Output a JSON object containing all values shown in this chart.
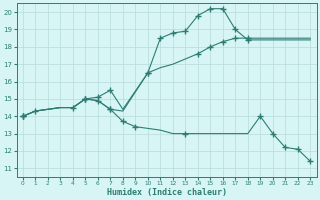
{
  "xlabel": "Humidex (Indice chaleur)",
  "bg_color": "#d8f5f5",
  "line_color": "#2d7d74",
  "grid_color": "#b8dada",
  "xlim": [
    -0.5,
    23.5
  ],
  "ylim": [
    10.5,
    20.5
  ],
  "xticks": [
    0,
    1,
    2,
    3,
    4,
    5,
    6,
    7,
    8,
    9,
    10,
    11,
    12,
    13,
    14,
    15,
    16,
    17,
    18,
    19,
    20,
    21,
    22,
    23
  ],
  "yticks": [
    11,
    12,
    13,
    14,
    15,
    16,
    17,
    18,
    19,
    20
  ],
  "line1_x": [
    0,
    1,
    2,
    3,
    4,
    5,
    6,
    7,
    8,
    10,
    11,
    12,
    13,
    14,
    15,
    16,
    17,
    18,
    19,
    20,
    21,
    22,
    23
  ],
  "line1_y": [
    14,
    14.3,
    14.4,
    14.5,
    14.5,
    15.0,
    14.9,
    14.4,
    14.3,
    16.5,
    18.5,
    18.8,
    18.9,
    19.8,
    20.2,
    20.2,
    19.0,
    18.4,
    18.4,
    18.4,
    18.4,
    18.4,
    18.4
  ],
  "line2_x": [
    0,
    1,
    2,
    3,
    4,
    5,
    6,
    7,
    8,
    10,
    11,
    12,
    13,
    14,
    15,
    16,
    17,
    18,
    19,
    20,
    21,
    22,
    23
  ],
  "line2_y": [
    14,
    14.3,
    14.4,
    14.5,
    14.5,
    15.0,
    15.1,
    15.5,
    14.4,
    16.5,
    16.8,
    17.0,
    17.3,
    17.6,
    18.0,
    18.3,
    18.5,
    18.5,
    18.5,
    18.5,
    18.5,
    18.5,
    18.5
  ],
  "line3_x": [
    0,
    1,
    2,
    3,
    4,
    5,
    6,
    7,
    8,
    9,
    10,
    11,
    12,
    13,
    14,
    15,
    16,
    17,
    18,
    19,
    20,
    21,
    22,
    23
  ],
  "line3_y": [
    14,
    14.3,
    14.4,
    14.5,
    14.5,
    15.0,
    14.9,
    14.4,
    13.7,
    13.4,
    13.3,
    13.2,
    13.0,
    13.0,
    13.0,
    13.0,
    13.0,
    13.0,
    13.0,
    14.0,
    13.0,
    12.2,
    12.1,
    11.4
  ],
  "marker1_x": [
    0,
    1,
    4,
    5,
    7,
    10,
    11,
    12,
    13,
    14,
    15,
    16,
    17,
    18
  ],
  "marker1_y": [
    14,
    14.3,
    14.5,
    15.0,
    14.4,
    16.5,
    18.5,
    18.8,
    18.9,
    19.8,
    20.2,
    20.2,
    19.0,
    18.4
  ],
  "marker2_x": [
    0,
    5,
    6,
    7,
    10,
    14,
    15,
    16,
    17,
    18
  ],
  "marker2_y": [
    14,
    15.0,
    15.1,
    15.5,
    16.5,
    17.6,
    18.0,
    18.3,
    18.5,
    18.5
  ],
  "marker3_x": [
    0,
    5,
    6,
    7,
    8,
    9,
    13,
    19,
    20,
    21,
    22,
    23
  ],
  "marker3_y": [
    14,
    15.0,
    14.9,
    14.4,
    13.7,
    13.4,
    13.0,
    14.0,
    13.0,
    12.2,
    12.1,
    11.4
  ]
}
